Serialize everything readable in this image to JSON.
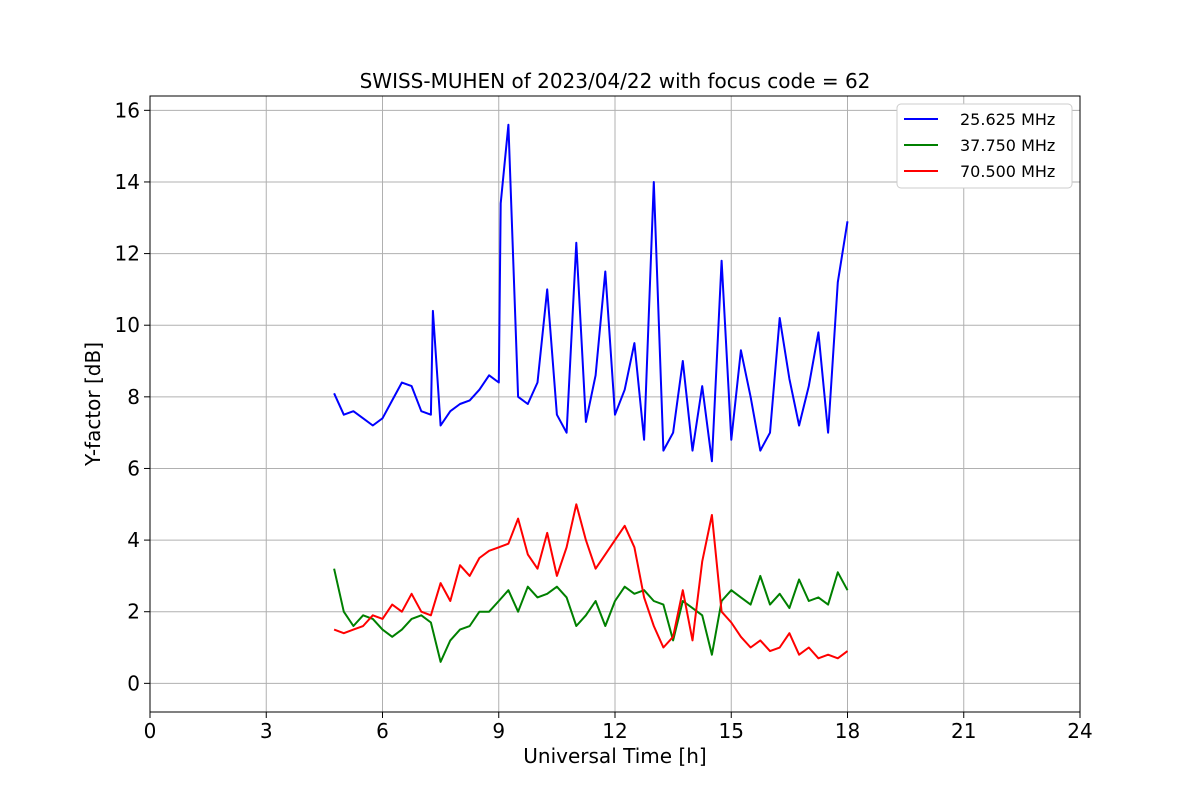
{
  "chart_data": {
    "type": "line",
    "title": "SWISS-MUHEN of 2023/04/22 with focus code = 62",
    "xlabel": "Universal Time [h]",
    "ylabel": "Y-factor [dB]",
    "xlim": [
      0,
      24
    ],
    "ylim": [
      -0.8,
      16.4
    ],
    "xticks": [
      0,
      3,
      6,
      9,
      12,
      15,
      18,
      21,
      24
    ],
    "yticks": [
      0,
      2,
      4,
      6,
      8,
      10,
      12,
      14,
      16
    ],
    "grid": true,
    "legend_position": "top-right",
    "series": [
      {
        "name": "25.625 MHz",
        "color": "#0000ff",
        "x": [
          4.75,
          5.0,
          5.25,
          5.5,
          5.75,
          6.0,
          6.25,
          6.5,
          6.75,
          7.0,
          7.25,
          7.3,
          7.5,
          7.75,
          8.0,
          8.25,
          8.5,
          8.75,
          9.0,
          9.05,
          9.25,
          9.5,
          9.75,
          10.0,
          10.25,
          10.5,
          10.75,
          11.0,
          11.25,
          11.5,
          11.75,
          12.0,
          12.25,
          12.5,
          12.75,
          13.0,
          13.25,
          13.5,
          13.75,
          14.0,
          14.25,
          14.5,
          14.75,
          15.0,
          15.25,
          15.5,
          15.75,
          16.0,
          16.25,
          16.5,
          16.75,
          17.0,
          17.25,
          17.5,
          17.75,
          18.0
        ],
        "y": [
          8.1,
          7.5,
          7.6,
          7.4,
          7.2,
          7.4,
          7.9,
          8.4,
          8.3,
          7.6,
          7.5,
          10.4,
          7.2,
          7.6,
          7.8,
          7.9,
          8.2,
          8.6,
          8.4,
          13.4,
          15.6,
          8.0,
          7.8,
          8.4,
          11.0,
          7.5,
          7.0,
          12.3,
          7.3,
          8.6,
          11.5,
          7.5,
          8.2,
          9.5,
          6.8,
          14.0,
          6.5,
          7.0,
          9.0,
          6.5,
          8.3,
          6.2,
          11.8,
          6.8,
          9.3,
          8.0,
          6.5,
          7.0,
          10.2,
          8.5,
          7.2,
          8.3,
          9.8,
          7.0,
          11.2,
          12.9
        ]
      },
      {
        "name": "37.750 MHz",
        "color": "#008000",
        "x": [
          4.75,
          5.0,
          5.25,
          5.5,
          5.75,
          6.0,
          6.25,
          6.5,
          6.75,
          7.0,
          7.25,
          7.5,
          7.75,
          8.0,
          8.25,
          8.5,
          8.75,
          9.0,
          9.25,
          9.5,
          9.75,
          10.0,
          10.25,
          10.5,
          10.75,
          11.0,
          11.25,
          11.5,
          11.75,
          12.0,
          12.25,
          12.5,
          12.75,
          13.0,
          13.25,
          13.5,
          13.75,
          14.0,
          14.25,
          14.5,
          14.75,
          15.0,
          15.25,
          15.5,
          15.75,
          16.0,
          16.25,
          16.5,
          16.75,
          17.0,
          17.25,
          17.5,
          17.75,
          18.0
        ],
        "y": [
          3.2,
          2.0,
          1.6,
          1.9,
          1.8,
          1.5,
          1.3,
          1.5,
          1.8,
          1.9,
          1.7,
          0.6,
          1.2,
          1.5,
          1.6,
          2.0,
          2.0,
          2.3,
          2.6,
          2.0,
          2.7,
          2.4,
          2.5,
          2.7,
          2.4,
          1.6,
          1.9,
          2.3,
          1.6,
          2.3,
          2.7,
          2.5,
          2.6,
          2.3,
          2.2,
          1.2,
          2.3,
          2.1,
          1.9,
          0.8,
          2.3,
          2.6,
          2.4,
          2.2,
          3.0,
          2.2,
          2.5,
          2.1,
          2.9,
          2.3,
          2.4,
          2.2,
          3.1,
          2.6
        ]
      },
      {
        "name": "70.500 MHz",
        "color": "#ff0000",
        "x": [
          4.75,
          5.0,
          5.25,
          5.5,
          5.75,
          6.0,
          6.25,
          6.5,
          6.75,
          7.0,
          7.25,
          7.5,
          7.75,
          8.0,
          8.25,
          8.5,
          8.75,
          9.0,
          9.25,
          9.5,
          9.75,
          10.0,
          10.25,
          10.5,
          10.75,
          11.0,
          11.25,
          11.5,
          11.75,
          12.0,
          12.25,
          12.5,
          12.75,
          13.0,
          13.25,
          13.5,
          13.75,
          14.0,
          14.25,
          14.5,
          14.75,
          15.0,
          15.25,
          15.5,
          15.75,
          16.0,
          16.25,
          16.5,
          16.75,
          17.0,
          17.25,
          17.5,
          17.75,
          18.0
        ],
        "y": [
          1.5,
          1.4,
          1.5,
          1.6,
          1.9,
          1.8,
          2.2,
          2.0,
          2.5,
          2.0,
          1.9,
          2.8,
          2.3,
          3.3,
          3.0,
          3.5,
          3.7,
          3.8,
          3.9,
          4.6,
          3.6,
          3.2,
          4.2,
          3.0,
          3.8,
          5.0,
          4.0,
          3.2,
          3.6,
          4.0,
          4.4,
          3.8,
          2.4,
          1.6,
          1.0,
          1.3,
          2.6,
          1.2,
          3.4,
          4.7,
          2.0,
          1.7,
          1.3,
          1.0,
          1.2,
          0.9,
          1.0,
          1.4,
          0.8,
          1.0,
          0.7,
          0.8,
          0.7,
          0.9
        ]
      }
    ]
  }
}
